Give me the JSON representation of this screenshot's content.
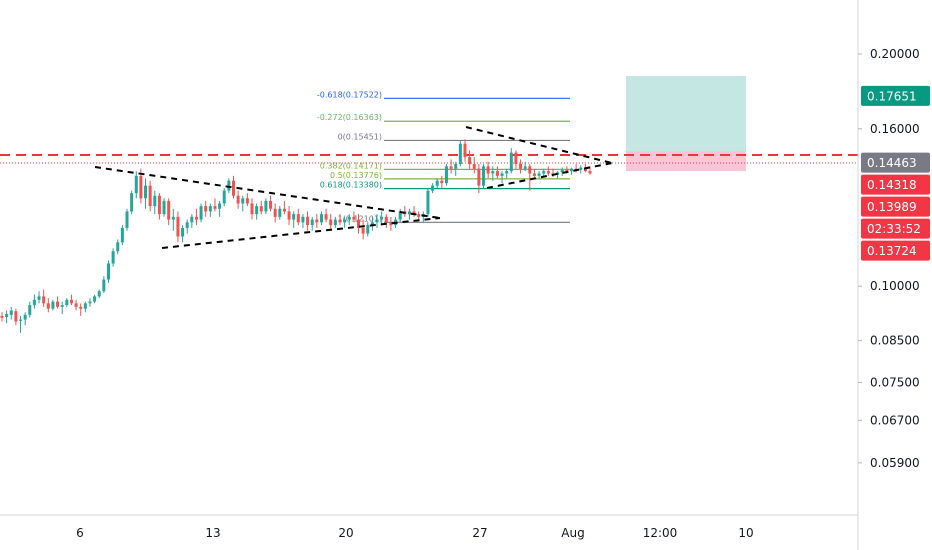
{
  "chart_data": {
    "type": "candlestick",
    "y_scale": "log",
    "ylim": [
      0.0505,
      0.235
    ],
    "x_ticks": [
      {
        "label": "6"
      },
      {
        "label": "13"
      },
      {
        "label": "20"
      },
      {
        "label": "27"
      },
      {
        "label": "Aug"
      },
      {
        "label": "12:00"
      },
      {
        "label": "10"
      }
    ],
    "y_ticks": [
      {
        "label": "0.20000",
        "value": 0.2
      },
      {
        "label": "0.16000",
        "value": 0.16
      },
      {
        "label": "0.10000",
        "value": 0.1
      },
      {
        "label": "0.08500",
        "value": 0.085
      },
      {
        "label": "0.07500",
        "value": 0.075
      },
      {
        "label": "0.06700",
        "value": 0.067
      },
      {
        "label": "0.05900",
        "value": 0.059
      }
    ],
    "price_badges": [
      {
        "label": "0.17651",
        "value": 0.17651,
        "color": "#089981"
      },
      {
        "label": "0.14463",
        "value": 0.14463,
        "color": "#787b86"
      },
      {
        "label": "0.14318",
        "value": 0.14318,
        "color": "#f23645"
      },
      {
        "label": "0.13989",
        "value": 0.13989,
        "color": "#f23645"
      },
      {
        "label": "02:33:52",
        "value": 0.1355,
        "color": "#f23645"
      },
      {
        "label": "0.13724",
        "value": 0.13724,
        "color": "#f23645"
      }
    ],
    "fib_levels": [
      {
        "label": "-0.618(0.17522)",
        "value": 0.17522,
        "color": "#2962ff"
      },
      {
        "label": "-0.272(0.16363)",
        "value": 0.16363,
        "color": "#66bb6a"
      },
      {
        "label": "0(0.15451)",
        "value": 0.15451,
        "color": "#787b86"
      },
      {
        "label": "0.382(0.14171)",
        "value": 0.14171,
        "color": "#7cb342"
      },
      {
        "label": "0.5(0.13776)",
        "value": 0.13776,
        "color": "#7cb342"
      },
      {
        "label": "0.618(0.13380)",
        "value": 0.1338,
        "color": "#089981"
      },
      {
        "label": "1(0.12101)",
        "value": 0.12101,
        "color": "#787b86"
      }
    ],
    "horizontal_line": {
      "value": 0.14463,
      "color": "#e53935",
      "style": "dashed"
    },
    "position": {
      "entry": 0.14463,
      "target": 0.17651,
      "stop": 0.13989
    },
    "ohlc": [
      [
        0.0915,
        0.0925,
        0.09,
        0.091
      ],
      [
        0.0912,
        0.093,
        0.0895,
        0.092
      ],
      [
        0.0918,
        0.094,
        0.0905,
        0.093
      ],
      [
        0.0928,
        0.0935,
        0.089,
        0.09
      ],
      [
        0.0902,
        0.0915,
        0.087,
        0.0905
      ],
      [
        0.0905,
        0.0925,
        0.089,
        0.0918
      ],
      [
        0.0918,
        0.0955,
        0.091,
        0.0945
      ],
      [
        0.0945,
        0.0975,
        0.0935,
        0.096
      ],
      [
        0.096,
        0.0985,
        0.095,
        0.097
      ],
      [
        0.097,
        0.099,
        0.094,
        0.095
      ],
      [
        0.095,
        0.0965,
        0.0925,
        0.0935
      ],
      [
        0.0935,
        0.096,
        0.093,
        0.0955
      ],
      [
        0.0955,
        0.097,
        0.0935,
        0.094
      ],
      [
        0.094,
        0.0955,
        0.092,
        0.0945
      ],
      [
        0.0945,
        0.0965,
        0.094,
        0.096
      ],
      [
        0.096,
        0.0975,
        0.0945,
        0.095
      ],
      [
        0.095,
        0.096,
        0.093,
        0.094
      ],
      [
        0.094,
        0.095,
        0.0915,
        0.0935
      ],
      [
        0.0935,
        0.0955,
        0.0925,
        0.095
      ],
      [
        0.095,
        0.0965,
        0.094,
        0.0955
      ],
      [
        0.0955,
        0.0975,
        0.095,
        0.097
      ],
      [
        0.097,
        0.099,
        0.0965,
        0.0985
      ],
      [
        0.0985,
        0.103,
        0.098,
        0.102
      ],
      [
        0.102,
        0.108,
        0.101,
        0.107
      ],
      [
        0.107,
        0.112,
        0.106,
        0.111
      ],
      [
        0.111,
        0.115,
        0.11,
        0.114
      ],
      [
        0.114,
        0.12,
        0.113,
        0.119
      ],
      [
        0.119,
        0.126,
        0.118,
        0.125
      ],
      [
        0.125,
        0.133,
        0.124,
        0.132
      ],
      [
        0.132,
        0.141,
        0.13,
        0.139
      ],
      [
        0.139,
        0.142,
        0.128,
        0.13
      ],
      [
        0.13,
        0.138,
        0.126,
        0.135
      ],
      [
        0.135,
        0.137,
        0.125,
        0.127
      ],
      [
        0.127,
        0.133,
        0.124,
        0.131
      ],
      [
        0.131,
        0.132,
        0.122,
        0.124
      ],
      [
        0.124,
        0.13,
        0.123,
        0.129
      ],
      [
        0.129,
        0.13,
        0.12,
        0.122
      ],
      [
        0.122,
        0.126,
        0.118,
        0.123
      ],
      [
        0.123,
        0.125,
        0.114,
        0.116
      ],
      [
        0.116,
        0.12,
        0.114,
        0.119
      ],
      [
        0.119,
        0.122,
        0.117,
        0.121
      ],
      [
        0.121,
        0.124,
        0.119,
        0.123
      ],
      [
        0.123,
        0.126,
        0.12,
        0.122
      ],
      [
        0.122,
        0.128,
        0.121,
        0.127
      ],
      [
        0.127,
        0.129,
        0.123,
        0.125
      ],
      [
        0.125,
        0.128,
        0.123,
        0.127
      ],
      [
        0.127,
        0.13,
        0.125,
        0.126
      ],
      [
        0.126,
        0.129,
        0.123,
        0.128
      ],
      [
        0.128,
        0.134,
        0.127,
        0.133
      ],
      [
        0.133,
        0.138,
        0.132,
        0.137
      ],
      [
        0.137,
        0.139,
        0.13,
        0.131
      ],
      [
        0.131,
        0.133,
        0.126,
        0.128
      ],
      [
        0.128,
        0.131,
        0.125,
        0.13
      ],
      [
        0.13,
        0.132,
        0.127,
        0.128
      ],
      [
        0.128,
        0.13,
        0.122,
        0.124
      ],
      [
        0.124,
        0.128,
        0.122,
        0.127
      ],
      [
        0.127,
        0.129,
        0.124,
        0.125
      ],
      [
        0.125,
        0.13,
        0.124,
        0.129
      ],
      [
        0.129,
        0.131,
        0.125,
        0.126
      ],
      [
        0.126,
        0.128,
        0.121,
        0.123
      ],
      [
        0.123,
        0.127,
        0.122,
        0.126
      ],
      [
        0.126,
        0.129,
        0.124,
        0.125
      ],
      [
        0.125,
        0.127,
        0.12,
        0.122
      ],
      [
        0.122,
        0.125,
        0.119,
        0.124
      ],
      [
        0.124,
        0.126,
        0.12,
        0.121
      ],
      [
        0.121,
        0.124,
        0.119,
        0.123
      ],
      [
        0.123,
        0.125,
        0.118,
        0.12
      ],
      [
        0.12,
        0.123,
        0.118,
        0.122
      ],
      [
        0.122,
        0.124,
        0.119,
        0.121
      ],
      [
        0.121,
        0.125,
        0.12,
        0.124
      ],
      [
        0.124,
        0.126,
        0.121,
        0.122
      ],
      [
        0.122,
        0.124,
        0.118,
        0.12
      ],
      [
        0.12,
        0.123,
        0.119,
        0.122
      ],
      [
        0.122,
        0.124,
        0.12,
        0.121
      ],
      [
        0.121,
        0.123,
        0.119,
        0.122
      ],
      [
        0.122,
        0.124,
        0.12,
        0.123
      ],
      [
        0.123,
        0.125,
        0.121,
        0.122
      ],
      [
        0.122,
        0.124,
        0.117,
        0.119
      ],
      [
        0.119,
        0.122,
        0.115,
        0.117
      ],
      [
        0.117,
        0.121,
        0.116,
        0.12
      ],
      [
        0.12,
        0.123,
        0.118,
        0.121
      ],
      [
        0.121,
        0.124,
        0.119,
        0.122
      ],
      [
        0.122,
        0.125,
        0.12,
        0.123
      ],
      [
        0.123,
        0.124,
        0.119,
        0.121
      ],
      [
        0.121,
        0.123,
        0.118,
        0.12
      ],
      [
        0.12,
        0.123,
        0.119,
        0.122
      ],
      [
        0.122,
        0.126,
        0.121,
        0.125
      ],
      [
        0.125,
        0.127,
        0.123,
        0.124
      ],
      [
        0.124,
        0.126,
        0.122,
        0.125
      ],
      [
        0.125,
        0.127,
        0.123,
        0.124
      ],
      [
        0.124,
        0.125,
        0.122,
        0.123
      ],
      [
        0.123,
        0.125,
        0.121,
        0.124
      ],
      [
        0.124,
        0.134,
        0.123,
        0.133
      ],
      [
        0.133,
        0.136,
        0.132,
        0.135
      ],
      [
        0.135,
        0.138,
        0.134,
        0.137
      ],
      [
        0.137,
        0.139,
        0.134,
        0.136
      ],
      [
        0.136,
        0.144,
        0.135,
        0.143
      ],
      [
        0.143,
        0.146,
        0.14,
        0.142
      ],
      [
        0.142,
        0.145,
        0.139,
        0.144
      ],
      [
        0.144,
        0.1545,
        0.143,
        0.153
      ],
      [
        0.153,
        0.155,
        0.145,
        0.147
      ],
      [
        0.147,
        0.15,
        0.142,
        0.144
      ],
      [
        0.144,
        0.147,
        0.14,
        0.142
      ],
      [
        0.142,
        0.144,
        0.132,
        0.135
      ],
      [
        0.135,
        0.144,
        0.134,
        0.143
      ],
      [
        0.143,
        0.145,
        0.138,
        0.14
      ],
      [
        0.14,
        0.143,
        0.137,
        0.141
      ],
      [
        0.141,
        0.143,
        0.138,
        0.139
      ],
      [
        0.139,
        0.141,
        0.136,
        0.14
      ],
      [
        0.14,
        0.142,
        0.138,
        0.141
      ],
      [
        0.141,
        0.151,
        0.14,
        0.149
      ],
      [
        0.149,
        0.15,
        0.142,
        0.144
      ],
      [
        0.144,
        0.146,
        0.14,
        0.142
      ],
      [
        0.142,
        0.145,
        0.141,
        0.143
      ],
      [
        0.143,
        0.144,
        0.133,
        0.14
      ],
      [
        0.14,
        0.142,
        0.138,
        0.139
      ],
      [
        0.139,
        0.141,
        0.138,
        0.14
      ],
      [
        0.14,
        0.142,
        0.1385,
        0.141
      ],
      [
        0.141,
        0.143,
        0.139,
        0.14
      ],
      [
        0.14,
        0.142,
        0.1385,
        0.1395
      ],
      [
        0.1395,
        0.141,
        0.138,
        0.1405
      ],
      [
        0.1405,
        0.1425,
        0.139,
        0.1415
      ],
      [
        0.1415,
        0.143,
        0.14,
        0.141
      ],
      [
        0.141,
        0.1425,
        0.1395,
        0.142
      ],
      [
        0.142,
        0.144,
        0.1405,
        0.1415
      ],
      [
        0.1415,
        0.1435,
        0.14,
        0.1425
      ],
      [
        0.1425,
        0.144,
        0.1405,
        0.141
      ],
      [
        0.141,
        0.143,
        0.1395,
        0.14
      ]
    ]
  }
}
